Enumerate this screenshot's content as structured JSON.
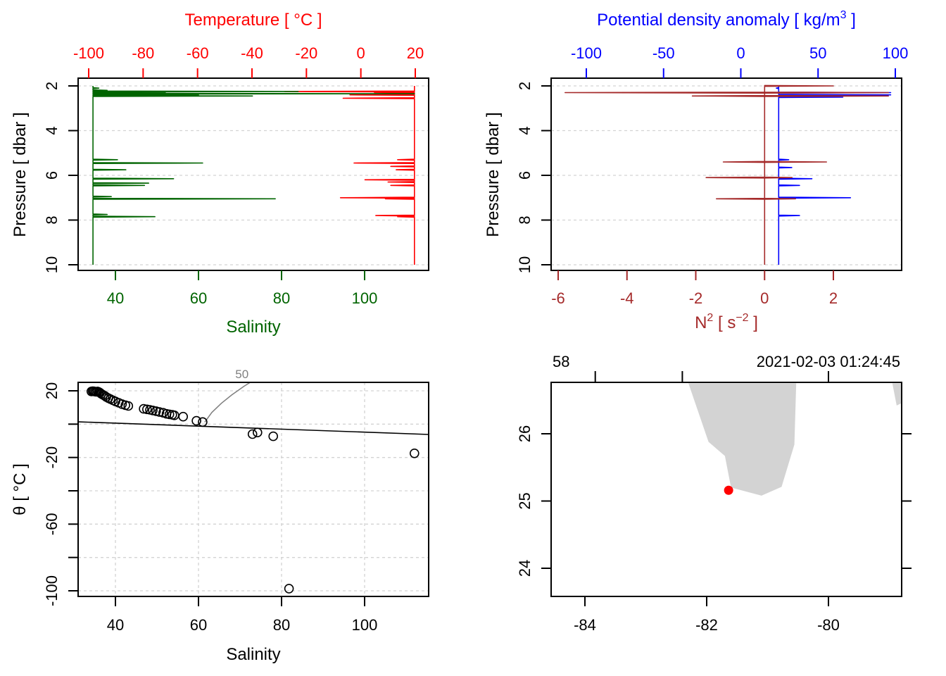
{
  "colors": {
    "salinity": "#006400",
    "temperature": "#ff0000",
    "density": "#0000ff",
    "n2": "#a52a2a",
    "grid": "#d3d3d3",
    "land": "#d3d3d3",
    "station": "#ff0000",
    "contour": "#808080"
  },
  "chart_data": [
    {
      "id": "profile-ts",
      "type": "line",
      "top_axis": {
        "title": "Temperature [ °C ]",
        "ticks": [
          -100,
          -80,
          -60,
          -40,
          -20,
          0,
          20
        ],
        "tick_labels": [
          "-100",
          "-80",
          "-60",
          "-40",
          "-20",
          "0",
          "20"
        ],
        "range": [
          -103.9,
          25.3
        ]
      },
      "bottom_axis": {
        "title": "Salinity",
        "ticks": [
          40,
          60,
          80,
          100
        ],
        "tick_labels": [
          "40",
          "60",
          "80",
          "100"
        ],
        "range": [
          31.1,
          115.5
        ]
      },
      "y_axis": {
        "title": "Pressure [ dbar ]",
        "ticks": [
          2,
          4,
          6,
          8,
          10
        ],
        "tick_labels": [
          "2",
          "4",
          "6",
          "8",
          "10"
        ],
        "range": [
          10.25,
          1.65
        ],
        "reversed": true
      },
      "grid": "horizontal",
      "series": [
        {
          "name": "Temperature",
          "axis": "top",
          "baseline": 19.7,
          "spikes": [
            {
              "p": 2.25,
              "v": -28
            },
            {
              "p": 2.3,
              "v": 5
            },
            {
              "p": 2.35,
              "v": 8
            },
            {
              "p": 2.4,
              "v": -4
            },
            {
              "p": 2.55,
              "v": -6.5
            },
            {
              "p": 5.3,
              "v": 13.5
            },
            {
              "p": 5.45,
              "v": -2.5
            },
            {
              "p": 5.6,
              "v": 11
            },
            {
              "p": 5.75,
              "v": 13
            },
            {
              "p": 6.2,
              "v": 1.5
            },
            {
              "p": 6.3,
              "v": 10
            },
            {
              "p": 6.45,
              "v": 11
            },
            {
              "p": 7.0,
              "v": -7.5
            },
            {
              "p": 7.05,
              "v": 9
            },
            {
              "p": 7.8,
              "v": 5.5
            },
            {
              "p": 7.85,
              "v": 13.5
            }
          ],
          "p_range": [
            2.0,
            10.0
          ]
        },
        {
          "name": "Salinity",
          "axis": "bottom",
          "baseline": 34.6,
          "spikes": [
            {
              "p": 2.1,
              "v": 36
            },
            {
              "p": 2.2,
              "v": 38
            },
            {
              "p": 2.25,
              "v": 84
            },
            {
              "p": 2.3,
              "v": 52
            },
            {
              "p": 2.35,
              "v": 112
            },
            {
              "p": 2.4,
              "v": 60
            },
            {
              "p": 2.45,
              "v": 73
            },
            {
              "p": 5.3,
              "v": 40.5
            },
            {
              "p": 5.45,
              "v": 61
            },
            {
              "p": 5.75,
              "v": 42.5
            },
            {
              "p": 6.15,
              "v": 54
            },
            {
              "p": 6.35,
              "v": 48
            },
            {
              "p": 6.45,
              "v": 47
            },
            {
              "p": 6.95,
              "v": 39
            },
            {
              "p": 7.05,
              "v": 78.5
            },
            {
              "p": 7.75,
              "v": 38
            },
            {
              "p": 7.85,
              "v": 49.5
            }
          ],
          "p_range": [
            2.0,
            10.0
          ]
        }
      ]
    },
    {
      "id": "profile-density-n2",
      "type": "line",
      "top_axis": {
        "title": "Potential density anomaly [ kg/m³ ]",
        "title_main": "Potential density anomaly [ kg/m",
        "title_sup": "3",
        "title_end": " ]",
        "ticks": [
          -100,
          -50,
          0,
          50,
          100
        ],
        "tick_labels": [
          "-100",
          "-50",
          "0",
          "50",
          "100"
        ],
        "range": [
          -122.8,
          104.1
        ]
      },
      "bottom_axis": {
        "title": "N² [ s⁻² ]",
        "title_main": "N",
        "title_sup": "2",
        "title_mid": " [ s",
        "title_sup2": "−2",
        "title_end": " ]",
        "ticks": [
          -6,
          -4,
          -2,
          0,
          2
        ],
        "tick_labels": [
          "-6",
          "-4",
          "-2",
          "0",
          "2"
        ],
        "range": [
          -6.2,
          4.0
        ]
      },
      "y_axis": {
        "title": "Pressure [ dbar ]",
        "ticks": [
          2,
          4,
          6,
          8,
          10
        ],
        "tick_labels": [
          "2",
          "4",
          "6",
          "8",
          "10"
        ],
        "range": [
          10.25,
          1.65
        ],
        "reversed": true
      },
      "grid": "horizontal",
      "series": [
        {
          "name": "Potential density anomaly",
          "axis": "top",
          "baseline": 24.5,
          "spikes": [
            {
              "p": 2.1,
              "v": 23
            },
            {
              "p": 2.3,
              "v": 97
            },
            {
              "p": 2.4,
              "v": 97
            },
            {
              "p": 2.5,
              "v": 66
            },
            {
              "p": 5.3,
              "v": 31
            },
            {
              "p": 5.65,
              "v": 33
            },
            {
              "p": 6.15,
              "v": 46
            },
            {
              "p": 6.45,
              "v": 38
            },
            {
              "p": 7.0,
              "v": 71
            },
            {
              "p": 7.8,
              "v": 38
            }
          ],
          "p_range": [
            2.0,
            10.0
          ]
        },
        {
          "name": "N2",
          "axis": "bottom",
          "baseline": 0.0,
          "spikes": [
            {
              "p": 2.0,
              "v": 2.0
            },
            {
              "p": 2.3,
              "v": -5.8
            },
            {
              "p": 2.3,
              "v": 3.6
            },
            {
              "p": 2.45,
              "v": -2.1
            },
            {
              "p": 2.45,
              "v": 3.6
            },
            {
              "p": 5.4,
              "v": -1.2
            },
            {
              "p": 5.4,
              "v": 1.8
            },
            {
              "p": 6.1,
              "v": -1.7
            },
            {
              "p": 6.1,
              "v": 0.8
            },
            {
              "p": 7.05,
              "v": -1.4
            },
            {
              "p": 7.05,
              "v": 0.9
            }
          ],
          "p_range": [
            2.0,
            10.0
          ]
        }
      ]
    },
    {
      "id": "ts-diagram",
      "type": "scatter",
      "x_axis": {
        "title": "Salinity",
        "ticks": [
          40,
          60,
          80,
          100
        ],
        "tick_labels": [
          "40",
          "60",
          "80",
          "100"
        ],
        "range": [
          31.1,
          115.5
        ]
      },
      "y_axis": {
        "title": "θ [ °C ]",
        "ticks": [
          20,
          0,
          -20,
          -40,
          -60,
          -80,
          -100
        ],
        "tick_labels": [
          "20",
          "",
          "-20",
          "",
          "-60",
          "",
          "-100"
        ],
        "range": [
          -103.3,
          25.1
        ]
      },
      "grid": "both",
      "points": [
        [
          34.2,
          19.6
        ],
        [
          34.5,
          19.8
        ],
        [
          34.8,
          19.7
        ],
        [
          35.1,
          19.5
        ],
        [
          35.4,
          19.4
        ],
        [
          35.7,
          19.6
        ],
        [
          36.0,
          19.3
        ],
        [
          36.3,
          18.8
        ],
        [
          36.6,
          18.2
        ],
        [
          37.0,
          17.6
        ],
        [
          37.4,
          17.0
        ],
        [
          37.8,
          16.3
        ],
        [
          38.3,
          15.6
        ],
        [
          38.8,
          15.0
        ],
        [
          39.4,
          14.3
        ],
        [
          40.0,
          13.6
        ],
        [
          40.8,
          12.8
        ],
        [
          41.6,
          12.0
        ],
        [
          42.4,
          11.4
        ],
        [
          43.1,
          10.9
        ],
        [
          46.8,
          9.2
        ],
        [
          47.6,
          8.9
        ],
        [
          48.3,
          8.6
        ],
        [
          49.0,
          8.2
        ],
        [
          49.8,
          7.8
        ],
        [
          50.6,
          7.3
        ],
        [
          51.5,
          6.8
        ],
        [
          52.3,
          6.2
        ],
        [
          53.0,
          5.9
        ],
        [
          53.7,
          5.6
        ],
        [
          54.2,
          5.3
        ],
        [
          56.3,
          4.5
        ],
        [
          59.5,
          2.0
        ],
        [
          61.0,
          1.3
        ],
        [
          73.0,
          -6.0
        ],
        [
          74.2,
          -5.0
        ],
        [
          78.0,
          -7.3
        ],
        [
          112.0,
          -17.5
        ],
        [
          81.8,
          -98.7
        ]
      ],
      "freezing_line": [
        [
          31.1,
          1.4
        ],
        [
          115.5,
          -6.2
        ]
      ],
      "contour": {
        "label": "50",
        "points": [
          [
            61.5,
            1.2
          ],
          [
            63.2,
            7.0
          ],
          [
            65.5,
            12.5
          ],
          [
            68.0,
            17.5
          ],
          [
            71.0,
            22.8
          ],
          [
            72.5,
            25.1
          ]
        ]
      }
    },
    {
      "id": "station-map",
      "type": "scatter",
      "x_axis": {
        "ticks": [
          -84,
          -82,
          -80
        ],
        "tick_labels": [
          "-84",
          "-82",
          "-80"
        ],
        "range": [
          -84.56,
          -78.81
        ]
      },
      "y_axis": {
        "ticks": [
          24,
          25,
          26
        ],
        "tick_labels": [
          "24",
          "25",
          "26"
        ],
        "range": [
          23.58,
          26.75
        ]
      },
      "top_labels": {
        "left": "58",
        "right": "2021-02-03 01:24:45"
      },
      "top_ticks": [
        -83.83,
        -82.4,
        -80.0
      ],
      "station": {
        "lon": -81.64,
        "lat": 25.16
      },
      "land_polygons": [
        [
          [
            -82.3,
            26.75
          ],
          [
            -81.97,
            25.88
          ],
          [
            -81.7,
            25.67
          ],
          [
            -81.6,
            25.2
          ],
          [
            -81.1,
            25.08
          ],
          [
            -80.77,
            25.21
          ],
          [
            -80.56,
            25.84
          ],
          [
            -80.53,
            26.75
          ]
        ],
        [
          [
            -78.95,
            26.75
          ],
          [
            -78.81,
            26.75
          ],
          [
            -78.81,
            26.45
          ],
          [
            -78.88,
            26.42
          ]
        ]
      ]
    }
  ]
}
